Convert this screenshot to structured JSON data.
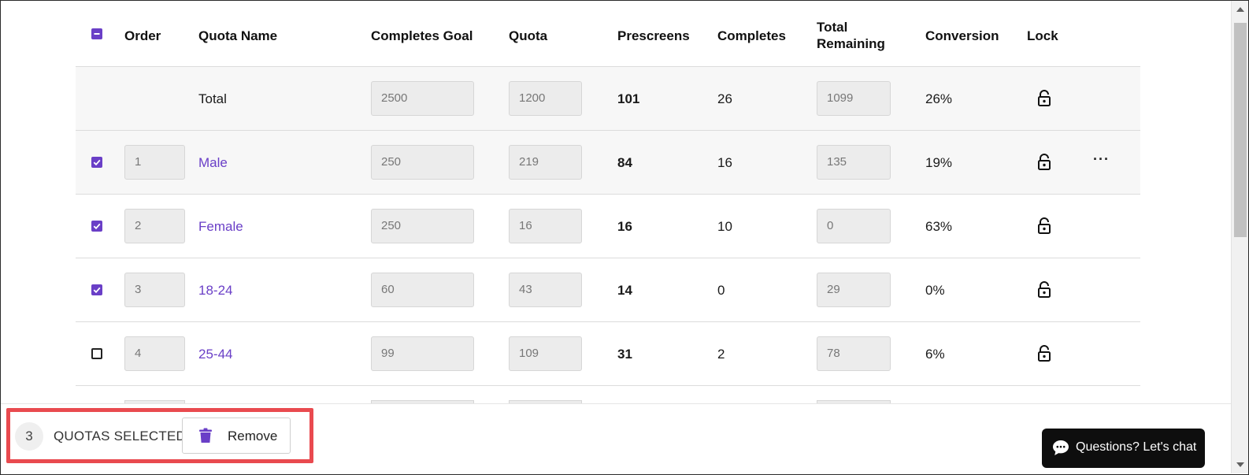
{
  "headers": {
    "order": "Order",
    "quota_name": "Quota Name",
    "completes_goal": "Completes Goal",
    "quota": "Quota",
    "prescreens": "Prescreens",
    "completes": "Completes",
    "total_remaining_1": "Total",
    "total_remaining_2": "Remaining",
    "conversion": "Conversion",
    "lock": "Lock"
  },
  "total_row": {
    "name": "Total",
    "completes_goal": "2500",
    "quota": "1200",
    "prescreens": "101",
    "completes": "26",
    "total_remaining": "1099",
    "conversion": "26%"
  },
  "rows": [
    {
      "order": "1",
      "name": "Male",
      "completes_goal": "250",
      "quota": "219",
      "prescreens": "84",
      "completes": "16",
      "total_remaining": "135",
      "conversion": "19%",
      "checked": true
    },
    {
      "order": "2",
      "name": "Female",
      "completes_goal": "250",
      "quota": "16",
      "prescreens": "16",
      "completes": "10",
      "total_remaining": "0",
      "conversion": "63%",
      "checked": true
    },
    {
      "order": "3",
      "name": "18-24",
      "completes_goal": "60",
      "quota": "43",
      "prescreens": "14",
      "completes": "0",
      "total_remaining": "29",
      "conversion": "0%",
      "checked": true
    },
    {
      "order": "4",
      "name": "25-44",
      "completes_goal": "99",
      "quota": "109",
      "prescreens": "31",
      "completes": "2",
      "total_remaining": "78",
      "conversion": "6%",
      "checked": false
    }
  ],
  "row_menu": "···",
  "selection": {
    "count": "3",
    "label": "QUOTAS SELECTED",
    "remove_label": "Remove"
  },
  "chat": {
    "label": "Questions? Let's chat"
  },
  "colors": {
    "accent": "#6a3fc7",
    "highlight_border": "#e94a4f"
  }
}
